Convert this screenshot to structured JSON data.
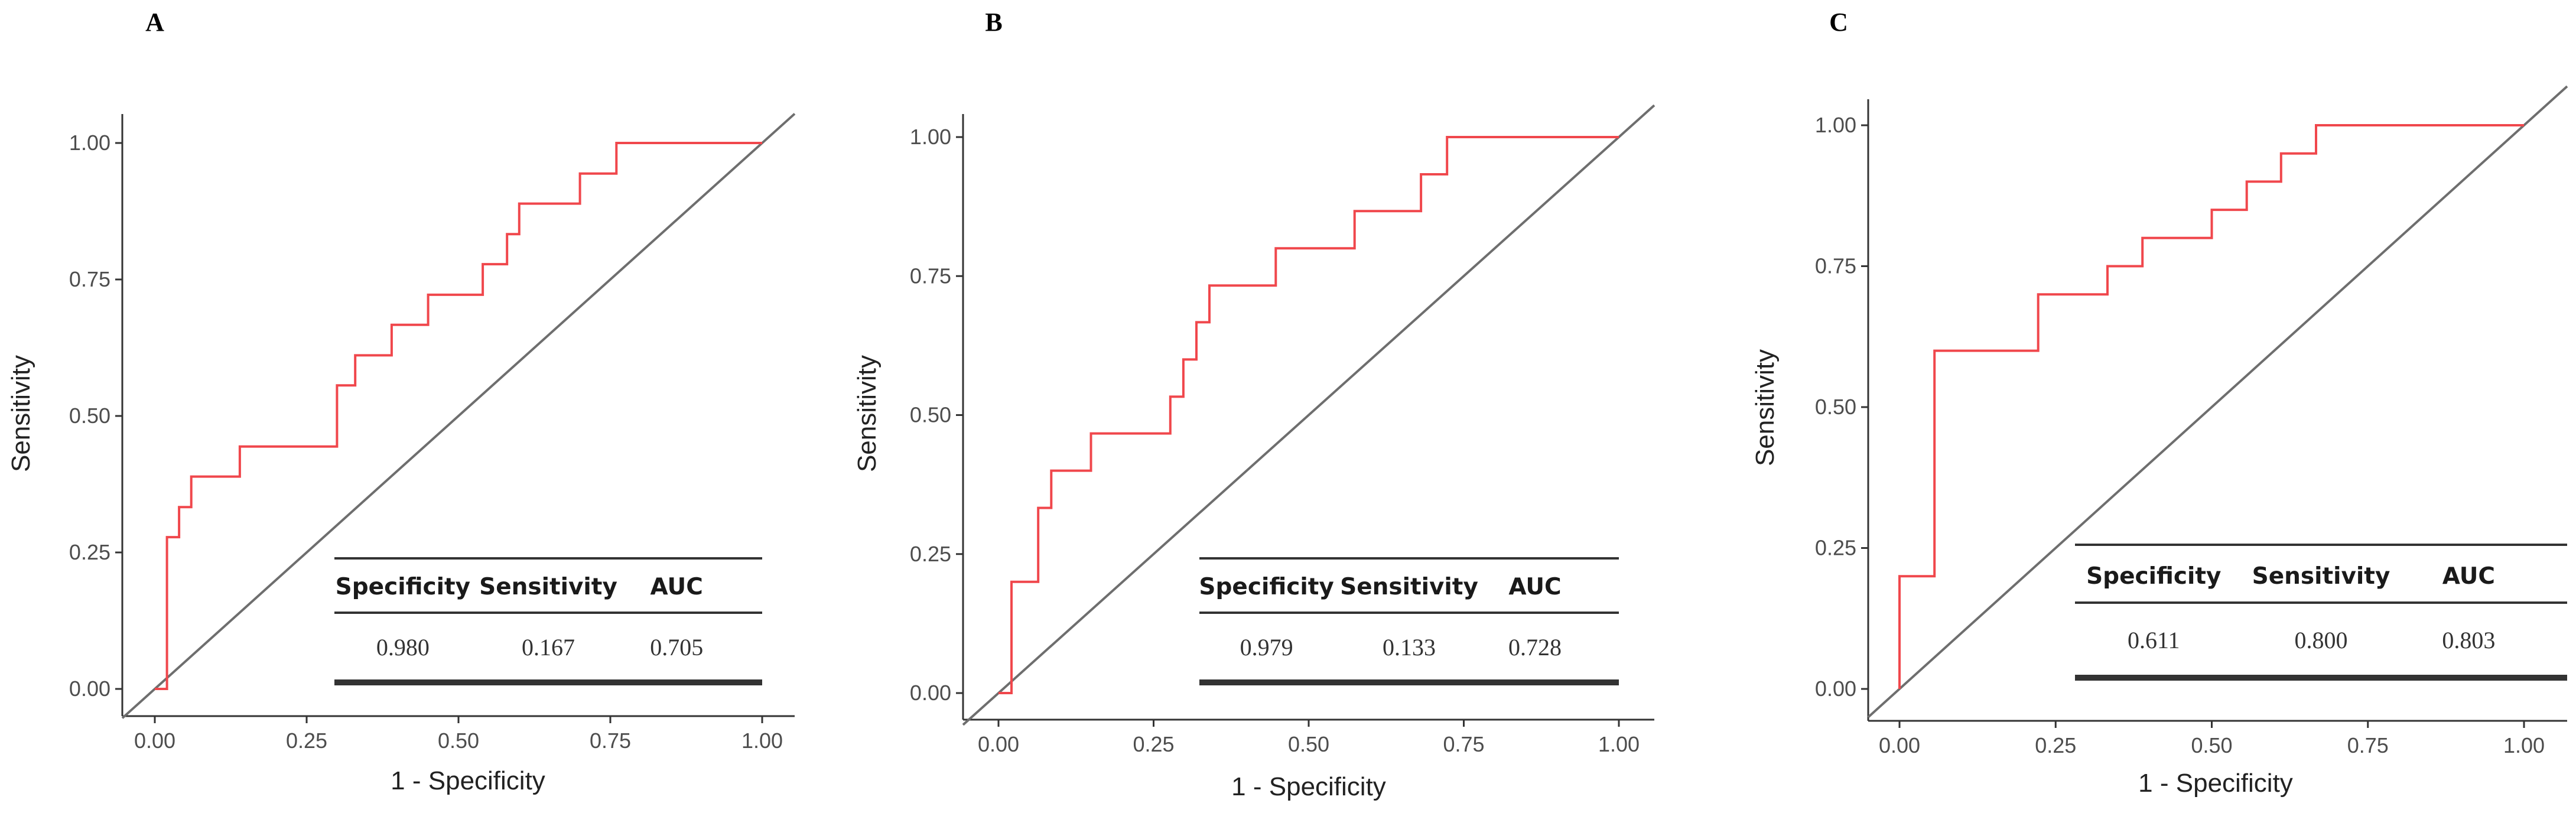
{
  "chart_data": [
    {
      "panel": "A",
      "type": "line",
      "xlabel": "1 - Specificity",
      "ylabel": "Sensitivity",
      "xlim": [
        0,
        1
      ],
      "ylim": [
        0,
        1
      ],
      "xticks": [
        "0.00",
        "0.25",
        "0.50",
        "0.75",
        "1.00"
      ],
      "yticks": [
        "0.00",
        "0.25",
        "0.50",
        "0.75",
        "1.00"
      ],
      "diagonal": true,
      "grid": false,
      "colors": {
        "roc": "#f0474c",
        "diagonal": "#6e6e6e"
      },
      "roc": {
        "x": [
          0,
          0.02,
          0.02,
          0.04,
          0.04,
          0.06,
          0.06,
          0.14,
          0.14,
          0.3,
          0.3,
          0.33,
          0.33,
          0.39,
          0.39,
          0.45,
          0.45,
          0.54,
          0.54,
          0.58,
          0.58,
          0.6,
          0.6,
          0.7,
          0.7,
          0.76,
          0.76,
          1.0
        ],
        "y": [
          0,
          0,
          0.278,
          0.278,
          0.333,
          0.333,
          0.389,
          0.389,
          0.444,
          0.444,
          0.556,
          0.556,
          0.611,
          0.611,
          0.667,
          0.667,
          0.722,
          0.722,
          0.778,
          0.778,
          0.833,
          0.833,
          0.889,
          0.889,
          0.944,
          0.944,
          1.0,
          1.0
        ]
      },
      "table": {
        "headers": [
          "Specificity",
          "Sensitivity",
          "AUC"
        ],
        "values": [
          "0.980",
          "0.167",
          "0.705"
        ]
      }
    },
    {
      "panel": "B",
      "type": "line",
      "xlabel": "1 - Specificity",
      "ylabel": "Sensitivity",
      "xlim": [
        0,
        1
      ],
      "ylim": [
        0,
        1
      ],
      "xticks": [
        "0.00",
        "0.25",
        "0.50",
        "0.75",
        "1.00"
      ],
      "yticks": [
        "0.00",
        "0.25",
        "0.50",
        "0.75",
        "1.00"
      ],
      "diagonal": true,
      "grid": false,
      "colors": {
        "roc": "#f0474c",
        "diagonal": "#6e6e6e"
      },
      "roc": {
        "x": [
          0,
          0.021,
          0.021,
          0.064,
          0.064,
          0.085,
          0.085,
          0.149,
          0.149,
          0.277,
          0.277,
          0.298,
          0.298,
          0.319,
          0.319,
          0.34,
          0.34,
          0.447,
          0.447,
          0.574,
          0.574,
          0.681,
          0.681,
          0.723,
          0.723,
          1.0
        ],
        "y": [
          0,
          0,
          0.2,
          0.2,
          0.333,
          0.333,
          0.4,
          0.4,
          0.467,
          0.467,
          0.533,
          0.533,
          0.6,
          0.6,
          0.667,
          0.667,
          0.733,
          0.733,
          0.8,
          0.8,
          0.867,
          0.867,
          0.933,
          0.933,
          1.0,
          1.0
        ]
      },
      "table": {
        "headers": [
          "Specificity",
          "Sensitivity",
          "AUC"
        ],
        "values": [
          "0.979",
          "0.133",
          "0.728"
        ]
      }
    },
    {
      "panel": "C",
      "type": "line",
      "xlabel": "1 - Specificity",
      "ylabel": "Sensitivity",
      "xlim": [
        0,
        1
      ],
      "ylim": [
        0,
        1
      ],
      "xticks": [
        "0.00",
        "0.25",
        "0.50",
        "0.75",
        "1.00"
      ],
      "yticks": [
        "0.00",
        "0.25",
        "0.50",
        "0.75",
        "1.00"
      ],
      "diagonal": true,
      "grid": false,
      "colors": {
        "roc": "#f0474c",
        "diagonal": "#6e6e6e"
      },
      "roc": {
        "x": [
          0,
          0,
          0.056,
          0.056,
          0.222,
          0.222,
          0.333,
          0.333,
          0.389,
          0.389,
          0.5,
          0.5,
          0.556,
          0.556,
          0.611,
          0.611,
          0.667,
          0.667,
          1.0
        ],
        "y": [
          0,
          0.2,
          0.2,
          0.6,
          0.6,
          0.7,
          0.7,
          0.75,
          0.75,
          0.8,
          0.8,
          0.85,
          0.85,
          0.9,
          0.9,
          0.95,
          0.95,
          1.0,
          1.0
        ]
      },
      "table": {
        "headers": [
          "Specificity",
          "Sensitivity",
          "AUC"
        ],
        "values": [
          "0.611",
          "0.800",
          "0.803"
        ]
      }
    }
  ]
}
